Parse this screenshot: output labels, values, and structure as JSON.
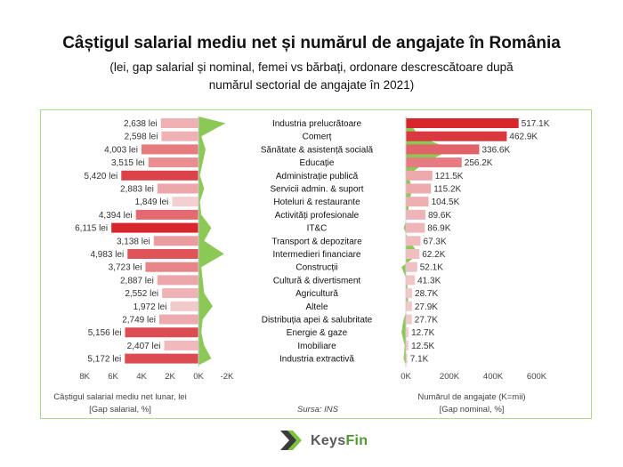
{
  "header": {
    "title": "Câștigul salarial mediu net și numărul de angajate în România",
    "subtitle_line1": "(lei, gap salarial și nominal, femei vs bărbați, ordonare descrescătoare după",
    "subtitle_line2": "numărul sectorial de angajate în 2021)"
  },
  "footer": {
    "left_label_line1": "Câștigul salarial mediu net lunar, lei",
    "left_label_line2": "[Gap salarial, %]",
    "source": "Sursa: INS",
    "right_label_line1": "Numărul de angajate (K=mii)",
    "right_label_line2": "[Gap nominal, %]"
  },
  "logo": {
    "part1": "Keys",
    "part2": "Fin"
  },
  "colors": {
    "bar_dark": "#d7262e",
    "bar_light": "#f4cfd1",
    "area": "#7ec242",
    "frame": "#a9d88f"
  },
  "chart_data": {
    "type": "bar",
    "categories": [
      "Industria prelucrătoare",
      "Comerț",
      "Sănătate & asistență socială",
      "Educație",
      "Administrație publică",
      "Servicii admin. & suport",
      "Hoteluri & restaurante",
      "Activități profesionale",
      "IT&C",
      "Transport & depozitare",
      "Intermedieri financiare",
      "Construcții",
      "Cultură & divertisment",
      "Agricultură",
      "Altele",
      "Distribuția apei & salubritate",
      "Energie & gaze",
      "Imobiliare",
      "Industria extractivă"
    ],
    "salary_labels": [
      "2,638 lei",
      "2,598 lei",
      "4,003 lei",
      "3,515 lei",
      "5,420 lei",
      "2,883 lei",
      "1,849 lei",
      "4,394 lei",
      "6,115 lei",
      "3,138 lei",
      "4,983 lei",
      "3,723 lei",
      "2,887 lei",
      "2,552 lei",
      "1,972 lei",
      "2,749 lei",
      "5,156 lei",
      "2,407 lei",
      "5,172 lei"
    ],
    "salary_values": [
      2638,
      2598,
      4003,
      3515,
      5420,
      2883,
      1849,
      4394,
      6115,
      3138,
      4983,
      3723,
      2887,
      2552,
      1972,
      2749,
      5156,
      2407,
      5172
    ],
    "salary_gap": [
      -1900,
      -200,
      -500,
      -300,
      -100,
      -400,
      -100,
      -200,
      -900,
      -400,
      -1800,
      -200,
      -300,
      -400,
      -1000,
      -300,
      -200,
      -400,
      -900
    ],
    "employee_labels": [
      "517.1K",
      "462.9K",
      "336.6K",
      "256.2K",
      "121.5K",
      "115.2K",
      "104.5K",
      "89.6K",
      "86.9K",
      "67.3K",
      "62.2K",
      "52.1K",
      "41.3K",
      "28.7K",
      "27.9K",
      "27.7K",
      "12.7K",
      "12.5K",
      "7.1K"
    ],
    "employee_values": [
      517.1,
      462.9,
      336.6,
      256.2,
      121.5,
      115.2,
      104.5,
      89.6,
      86.9,
      67.3,
      62.2,
      52.1,
      41.3,
      28.7,
      27.9,
      27.7,
      12.7,
      12.5,
      7.1
    ],
    "nominal_gap": [
      20,
      60,
      210,
      90,
      10,
      30,
      15,
      10,
      -10,
      15,
      60,
      -20,
      5,
      10,
      10,
      -10,
      -20,
      -5,
      -10
    ],
    "left_axis": {
      "ticks": [
        "8K",
        "6K",
        "4K",
        "2K",
        "0K",
        "-2K"
      ],
      "range": [
        8000,
        -2000
      ]
    },
    "right_axis": {
      "ticks": [
        "0K",
        "200K",
        "400K",
        "600K"
      ],
      "range": [
        0,
        600
      ]
    }
  }
}
